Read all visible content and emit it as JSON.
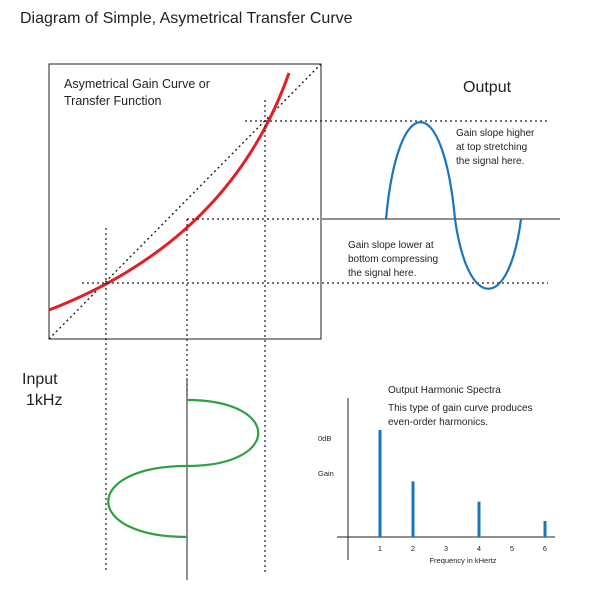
{
  "title": "Diagram of Simple, Asymetrical Transfer Curve",
  "transfer_box": {
    "label_line1": "Asymetrical Gain Curve or",
    "label_line2": "Transfer Function"
  },
  "output": {
    "label": "Output",
    "note_top": [
      "Gain slope higher",
      "at top stretching",
      "the signal here."
    ],
    "note_bottom": [
      "Gain slope lower at",
      "bottom compressing",
      "the signal here."
    ]
  },
  "input": {
    "label_line1": "Input",
    "label_line2": "1kHz"
  },
  "spectra": {
    "title": "Output Harmonic Spectra",
    "note_line1": "This type of gain curve produces",
    "note_line2": "even-order harmonics.",
    "y_label_top": "0dB",
    "y_label_mid": "Gain",
    "x_axis_label": "Frequency in kHertz",
    "x_ticks": [
      "1",
      "2",
      "3",
      "4",
      "5",
      "6"
    ]
  },
  "chart_data": {
    "type": "bar",
    "categories": [
      "1",
      "2",
      "3",
      "4",
      "5",
      "6"
    ],
    "values": [
      1.0,
      0.52,
      0,
      0.33,
      0,
      0.15
    ],
    "xlabel": "Frequency in kHertz",
    "ylabel": "Gain",
    "ylim": [
      0,
      1.1
    ]
  },
  "colors": {
    "gain_curve": "#e31e24",
    "output_wave": "#1b75bc",
    "input_wave": "#2ca140",
    "harmonic_bar": "#1b75bc",
    "lines": "#231f20"
  }
}
